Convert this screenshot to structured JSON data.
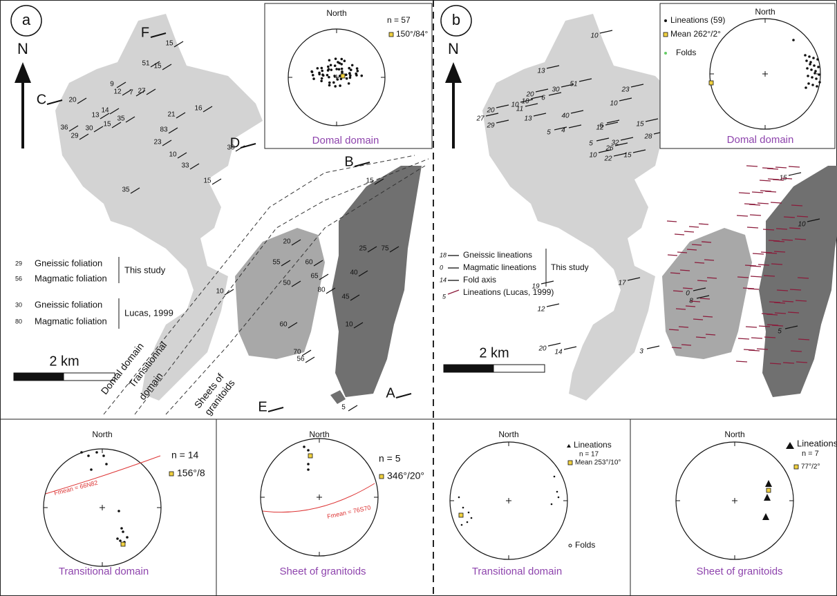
{
  "panel_a": {
    "label": "a",
    "north": "N",
    "scale": "2 km",
    "sections": [
      "A",
      "B",
      "C",
      "D",
      "E",
      "F"
    ],
    "legend": {
      "this_study": [
        "Gneissic foliation",
        "Magmatic foliation"
      ],
      "this_study_label": "This study",
      "this_study_values": [
        "29",
        "56"
      ],
      "lucas": [
        "Gneissic foliation",
        "Magmatic foliation"
      ],
      "lucas_label": "Lucas, 1999",
      "lucas_values": [
        "30",
        "80"
      ]
    },
    "domains": [
      "Domal domain",
      "Transitionnal",
      "domain",
      "Sheets of",
      "granitoids"
    ],
    "map_values": [
      "15",
      "20",
      "36",
      "29",
      "30",
      "13",
      "14",
      "15",
      "9",
      "12",
      "7",
      "27",
      "51",
      "15",
      "35",
      "21",
      "83",
      "23",
      "10",
      "16",
      "33",
      "15",
      "35",
      "30",
      "10",
      "20",
      "55",
      "60",
      "70",
      "40",
      "65",
      "50",
      "80",
      "25",
      "45",
      "15",
      "75",
      "60",
      "56",
      "10",
      "5"
    ],
    "inset": {
      "north": "North",
      "n": "n = 57",
      "mean": "150°/84°",
      "title": "Domal domain"
    },
    "stereonets": [
      {
        "north": "North",
        "n": "n = 14",
        "mean": "156°/8",
        "fmean": "Fmean = 66N82",
        "title": "Transitional domain"
      },
      {
        "north": "North",
        "n": "n = 5",
        "mean": "346°/20°",
        "fmean": "Fmean = 76S70",
        "title": "Sheet of granitoids"
      }
    ]
  },
  "panel_b": {
    "label": "b",
    "north": "N",
    "scale": "2 km",
    "legend": {
      "items": [
        "Gneissic lineations",
        "Magmatic lineations",
        "Fold axis"
      ],
      "values": [
        "18",
        "0",
        "14"
      ],
      "this_study": "This study",
      "lucas": "Lineations (Lucas, 1999)",
      "lucas_value": "5"
    },
    "map_values": [
      "10",
      "13",
      "51",
      "20",
      "6",
      "10",
      "30",
      "10",
      "11",
      "20",
      "27",
      "29",
      "13",
      "5",
      "40",
      "12",
      "23",
      "10",
      "15",
      "28",
      "32",
      "26",
      "22",
      "15",
      "10",
      "5",
      "4",
      "6",
      "19",
      "17",
      "0",
      "8",
      "12",
      "20",
      "14",
      "3",
      "15",
      "10",
      "5"
    ],
    "inset": {
      "lineations": "Lineations (59)",
      "mean": "Mean 262°/2°",
      "folds": "Folds",
      "north": "North",
      "title": "Domal domain"
    },
    "stereonets": [
      {
        "north": "North",
        "lineations": "Lineations",
        "n": "n = 17",
        "mean": "Mean 253°/10°",
        "folds": "Folds",
        "title": "Transitional domain"
      },
      {
        "north": "North",
        "lineations": "Lineations",
        "n": "n = 7",
        "mean": "77°/2°",
        "title": "Sheet of granitoids"
      }
    ]
  }
}
